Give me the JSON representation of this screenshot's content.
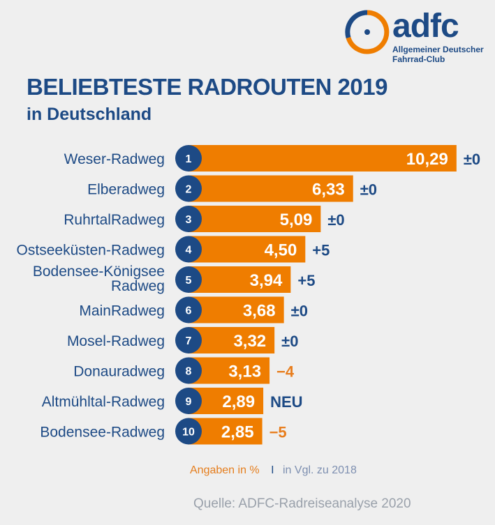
{
  "logo": {
    "word": "adfc",
    "line1": "Allgemeiner Deutscher",
    "line2": "Fahrrad-Club"
  },
  "title": "BELIEBTESTE RADROUTEN 2019",
  "subtitle": "in Deutschland",
  "colors": {
    "bar": "#ef7d00",
    "navy": "#1d4a85",
    "orange_text": "#e87e1e",
    "background": "#efefef"
  },
  "chart_data": {
    "type": "bar",
    "orientation": "horizontal",
    "unit": "%",
    "grid": false,
    "categories": [
      "Weser-Radweg",
      "Elberadweg",
      "RuhrtalRadweg",
      "Ostseeküsten-Radweg",
      [
        "Bodensee-Königsee",
        "Radweg"
      ],
      "MainRadweg",
      "Mosel-Radweg",
      "Donauradweg",
      "Altmühltal-Radweg",
      "Bodensee-Radweg"
    ],
    "ranks": [
      "1",
      "2",
      "3",
      "4",
      "5",
      "6",
      "7",
      "8",
      "9",
      "10"
    ],
    "values": [
      10.29,
      6.33,
      5.09,
      4.5,
      3.94,
      3.68,
      3.32,
      3.13,
      2.89,
      2.85
    ],
    "value_labels": [
      "10,29",
      "6,33",
      "5,09",
      "4,50",
      "3,94",
      "3,68",
      "3,32",
      "3,13",
      "2,89",
      "2,85"
    ],
    "changes": [
      "±0",
      "±0",
      "±0",
      "+5",
      "+5",
      "±0",
      "±0",
      "−4",
      "NEU",
      "−5"
    ],
    "change_colors": [
      "navy",
      "navy",
      "navy",
      "navy",
      "navy",
      "navy",
      "navy",
      "orange",
      "navy",
      "orange"
    ]
  },
  "footnote": {
    "values": "Angaben in %",
    "separator": "I",
    "comparison": "in Vgl. zu 2018"
  },
  "source": "Quelle: ADFC-Radreiseanalyse 2020"
}
